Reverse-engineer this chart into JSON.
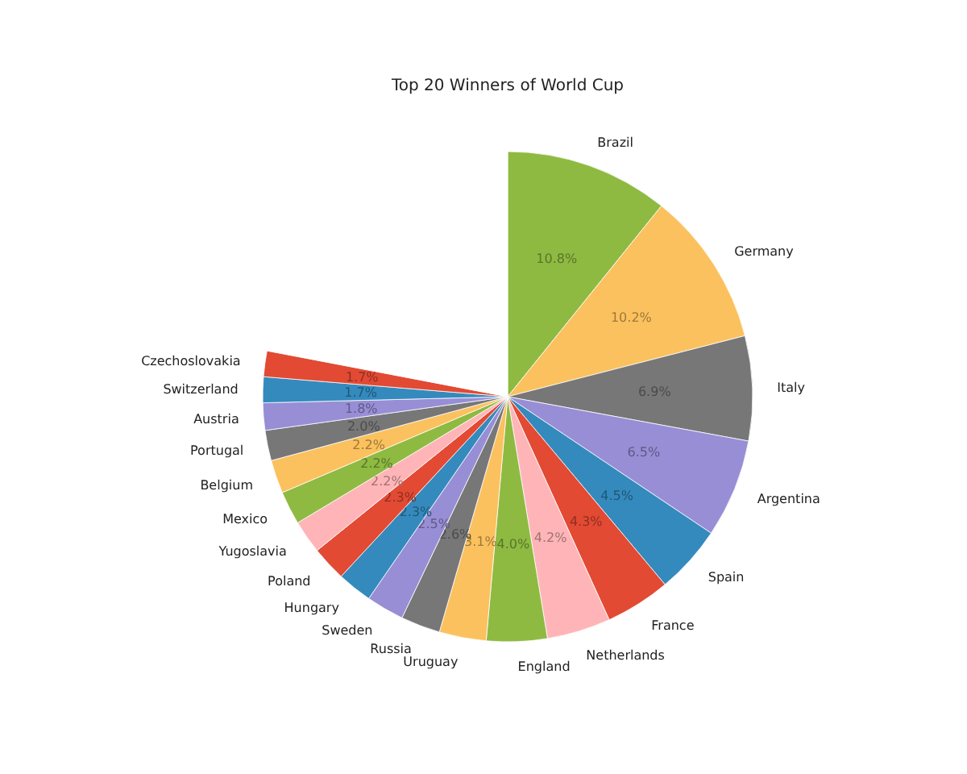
{
  "chart_data": {
    "type": "pie",
    "title": "Top 20 Winners of World Cup",
    "categories": [
      "Brazil",
      "Germany",
      "Italy",
      "Argentina",
      "Spain",
      "France",
      "Netherlands",
      "England",
      "Uruguay",
      "Russia",
      "Sweden",
      "Hungary",
      "Poland",
      "Yugoslavia",
      "Mexico",
      "Belgium",
      "Portugal",
      "Austria",
      "Switzerland",
      "Czechoslovakia",
      null
    ],
    "values": [
      10.8,
      10.2,
      6.9,
      6.5,
      4.5,
      4.3,
      4.2,
      4.0,
      3.1,
      2.6,
      2.5,
      2.3,
      2.3,
      2.2,
      2.2,
      2.2,
      2.0,
      1.8,
      1.7,
      1.7,
      22.0
    ],
    "value_labels": [
      "10.8%",
      "10.2%",
      "6.9%",
      "6.5%",
      "4.5%",
      "4.3%",
      "4.2%",
      "4.0%",
      "3.1%",
      "2.6%",
      "2.5%",
      "2.3%",
      "2.3%",
      "2.2%",
      "2.2%",
      "2.2%",
      "2.0%",
      "1.8%",
      "1.7%",
      "1.7%",
      null
    ],
    "colors": [
      "#8eba42",
      "#fbc15e",
      "#777777",
      "#988ed5",
      "#348abd",
      "#e24a33",
      "#ffb5b8",
      "#8eba42",
      "#fbc15e",
      "#777777",
      "#988ed5",
      "#348abd",
      "#e24a33",
      "#ffb5b8",
      "#8eba42",
      "#fbc15e",
      "#777777",
      "#988ed5",
      "#348abd",
      "#e24a33",
      "#ffffff"
    ]
  }
}
